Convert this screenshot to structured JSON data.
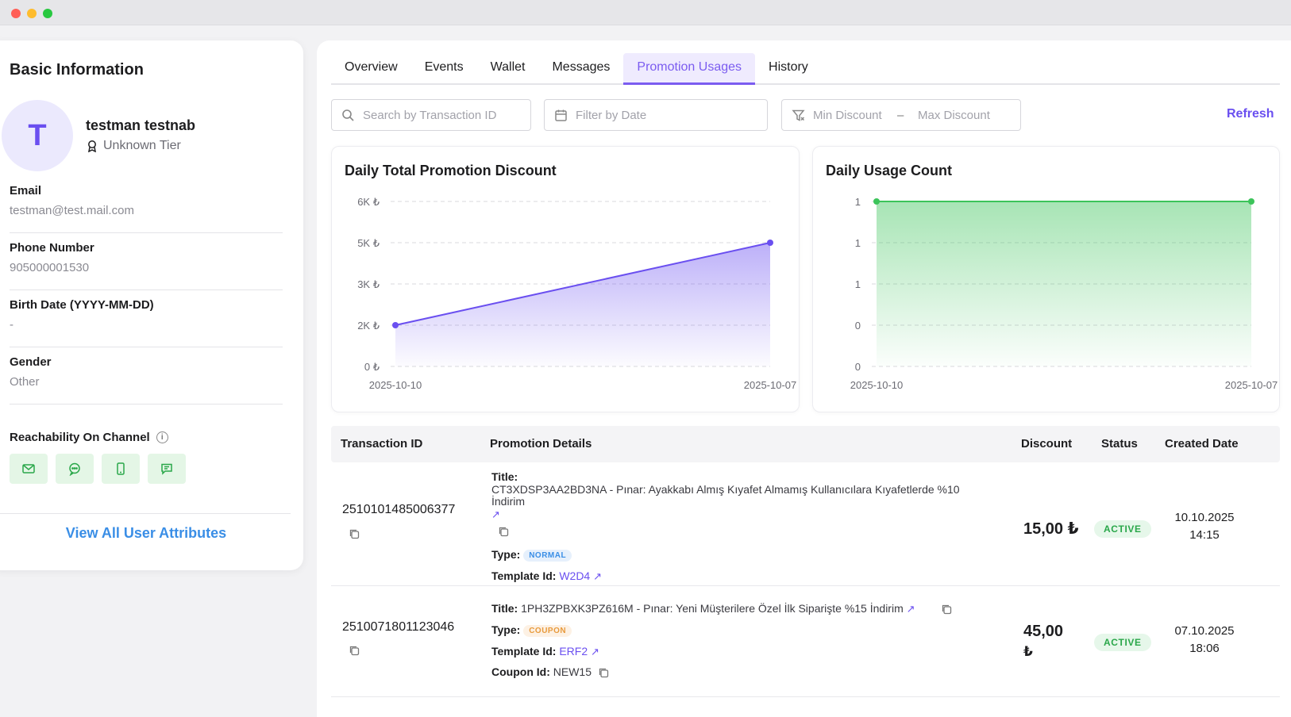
{
  "left": {
    "title": "Basic Information",
    "avatar_letter": "T",
    "user_name": "testman testnab",
    "tier": "Unknown Tier",
    "fields": [
      {
        "label": "Email",
        "value": "testman@test.mail.com"
      },
      {
        "label": "Phone Number",
        "value": "905000001530"
      },
      {
        "label": "Birth Date (YYYY-MM-DD)",
        "value": "-"
      },
      {
        "label": "Gender",
        "value": "Other"
      }
    ],
    "reachability_label": "Reachability On Channel",
    "info_glyph": "i",
    "view_all": "View All User Attributes"
  },
  "tabs": [
    "Overview",
    "Events",
    "Wallet",
    "Messages",
    "Promotion Usages",
    "History"
  ],
  "active_tab": "Promotion Usages",
  "filters": {
    "search_placeholder": "Search by Transaction ID",
    "date_placeholder": "Filter by Date",
    "min_placeholder": "Min Discount",
    "range_sep": "–",
    "max_placeholder": "Max Discount",
    "refresh": "Refresh"
  },
  "chart_data": [
    {
      "type": "area",
      "title": "Daily Total Promotion Discount",
      "x": [
        "2025-10-10",
        "2025-10-07"
      ],
      "values": [
        2000,
        5000
      ],
      "yticks": [
        "6K ₺",
        "5K ₺",
        "3K ₺",
        "2K ₺",
        "0 ₺"
      ],
      "color": "#6a4ff0",
      "grid": true
    },
    {
      "type": "area",
      "title": "Daily Usage Count",
      "x": [
        "2025-10-10",
        "2025-10-07"
      ],
      "values": [
        1,
        1
      ],
      "yticks": [
        "1",
        "1",
        "1",
        "0",
        "0"
      ],
      "color": "#3cc45a",
      "grid": true
    }
  ],
  "table": {
    "headers": {
      "txid": "Transaction ID",
      "details": "Promotion Details",
      "discount": "Discount",
      "status": "Status",
      "created": "Created Date"
    },
    "rows": [
      {
        "txid": "2510101485006377",
        "title_label": "Title:",
        "title_line1": "CT3XDSP3AA2BD3NA - Pınar: Ayakkabı Almış Kıyafet Almamış Kullanıcılara Kıyafetlerde %10",
        "title_line2": "İndirim",
        "type_label": "Type:",
        "type": "NORMAL",
        "template_label": "Template Id:",
        "template_id": "W2D4",
        "discount": "15,00 ₺",
        "status": "ACTIVE",
        "created_date": "10.10.2025",
        "created_time": "14:15"
      },
      {
        "txid": "2510071801123046",
        "title_label": "Title:",
        "title_line1": "1PH3ZPBXK3PZ616M - Pınar: Yeni Müşterilere Özel İlk Siparişte %15 İndirim",
        "type_label": "Type:",
        "type": "COUPON",
        "template_label": "Template Id:",
        "template_id": "ERF2",
        "coupon_label": "Coupon Id:",
        "coupon_id": "NEW15",
        "discount_line1": "45,00",
        "discount_line2": "₺",
        "status": "ACTIVE",
        "created_date": "07.10.2025",
        "created_time": "18:06"
      }
    ]
  },
  "arrow_glyph": "↗"
}
